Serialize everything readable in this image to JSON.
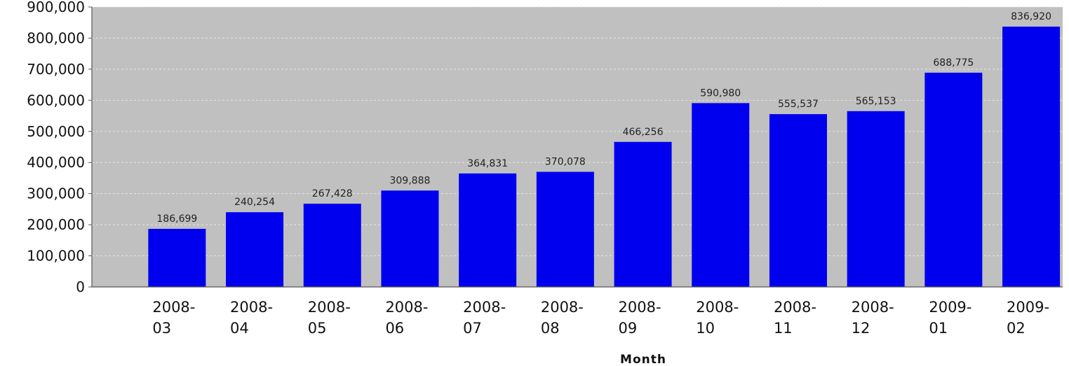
{
  "chart_data": {
    "type": "bar",
    "title": "",
    "xlabel": "Month",
    "ylabel": "",
    "ylim": [
      0,
      900000
    ],
    "yticks": [
      0,
      100000,
      200000,
      300000,
      400000,
      500000,
      600000,
      700000,
      800000,
      900000
    ],
    "ytick_labels": [
      "0",
      "100,000",
      "200,000",
      "300,000",
      "400,000",
      "500,000",
      "600,000",
      "700,000",
      "800,000",
      "900,000"
    ],
    "categories": [
      "2008-03",
      "2008-04",
      "2008-05",
      "2008-06",
      "2008-07",
      "2008-08",
      "2008-09",
      "2008-10",
      "2008-11",
      "2008-12",
      "2009-01",
      "2009-02"
    ],
    "category_lines": [
      [
        "2008-",
        "03"
      ],
      [
        "2008-",
        "04"
      ],
      [
        "2008-",
        "05"
      ],
      [
        "2008-",
        "06"
      ],
      [
        "2008-",
        "07"
      ],
      [
        "2008-",
        "08"
      ],
      [
        "2008-",
        "09"
      ],
      [
        "2008-",
        "10"
      ],
      [
        "2008-",
        "11"
      ],
      [
        "2008-",
        "12"
      ],
      [
        "2009-",
        "01"
      ],
      [
        "2009-",
        "02"
      ]
    ],
    "values": [
      186699,
      240254,
      267428,
      309888,
      364831,
      370078,
      466256,
      590980,
      555537,
      565153,
      688775,
      836920
    ],
    "value_labels": [
      "186,699",
      "240,254",
      "267,428",
      "309,888",
      "364,831",
      "370,078",
      "466,256",
      "590,980",
      "555,537",
      "565,153",
      "688,775",
      "836,920"
    ],
    "grid": true,
    "legend": "none",
    "colors": {
      "bar": "#0000ee",
      "plot_background": "#c0c0c0",
      "gridline": "#e6e6e6",
      "axis": "#555555"
    }
  }
}
